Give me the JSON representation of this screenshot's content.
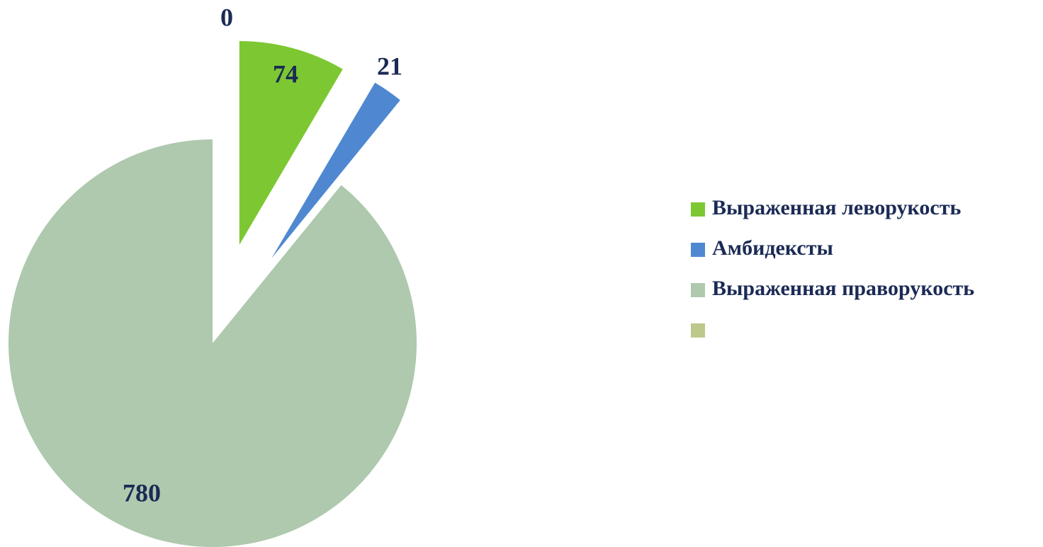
{
  "chart_data": {
    "type": "pie",
    "categories": [
      "Выраженная леворукость",
      "Амбидексты",
      "Выраженная праворукость",
      null
    ],
    "values": [
      74,
      21,
      780,
      0
    ],
    "colors": [
      "#7dc832",
      "#4f88d1",
      "#aec9ad",
      "#bcc98a"
    ],
    "legend": "right"
  }
}
